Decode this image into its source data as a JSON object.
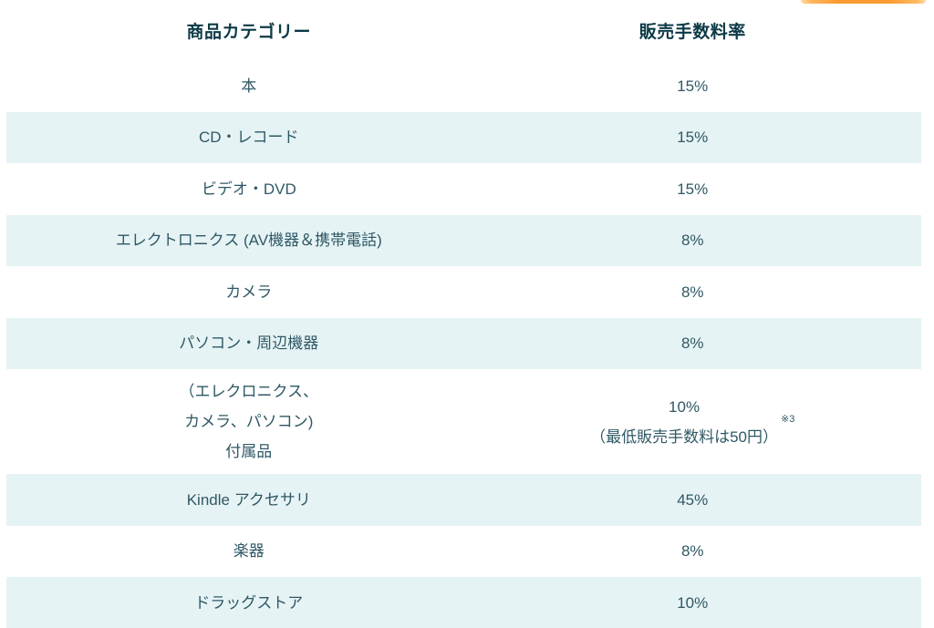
{
  "colors": {
    "accent_orange": "#F99B32",
    "row_stripe": "#E6F3F5",
    "header_text": "#0C3A46",
    "body_text": "#2F5865"
  },
  "table": {
    "headers": {
      "category": "商品カテゴリー",
      "rate": "販売手数料率"
    },
    "rows": [
      {
        "category": "本",
        "rate": "15%"
      },
      {
        "category": "CD・レコード",
        "rate": "15%"
      },
      {
        "category": "ビデオ・DVD",
        "rate": "15%"
      },
      {
        "category": "エレクトロニクス (AV機器＆携帯電話)",
        "rate": "8%"
      },
      {
        "category": "カメラ",
        "rate": "8%"
      },
      {
        "category": "パソコン・周辺機器",
        "rate": "8%"
      },
      {
        "category": "（エレクロニクス、\nカメラ、パソコン)\n付属品",
        "rate": "10%\n（最低販売手数料は50円）",
        "rate_footnote": "※3"
      },
      {
        "category": "Kindle アクセサリ",
        "rate": "45%"
      },
      {
        "category": "楽器",
        "rate": "8%"
      },
      {
        "category": "ドラッグストア",
        "rate": "10%"
      }
    ]
  }
}
